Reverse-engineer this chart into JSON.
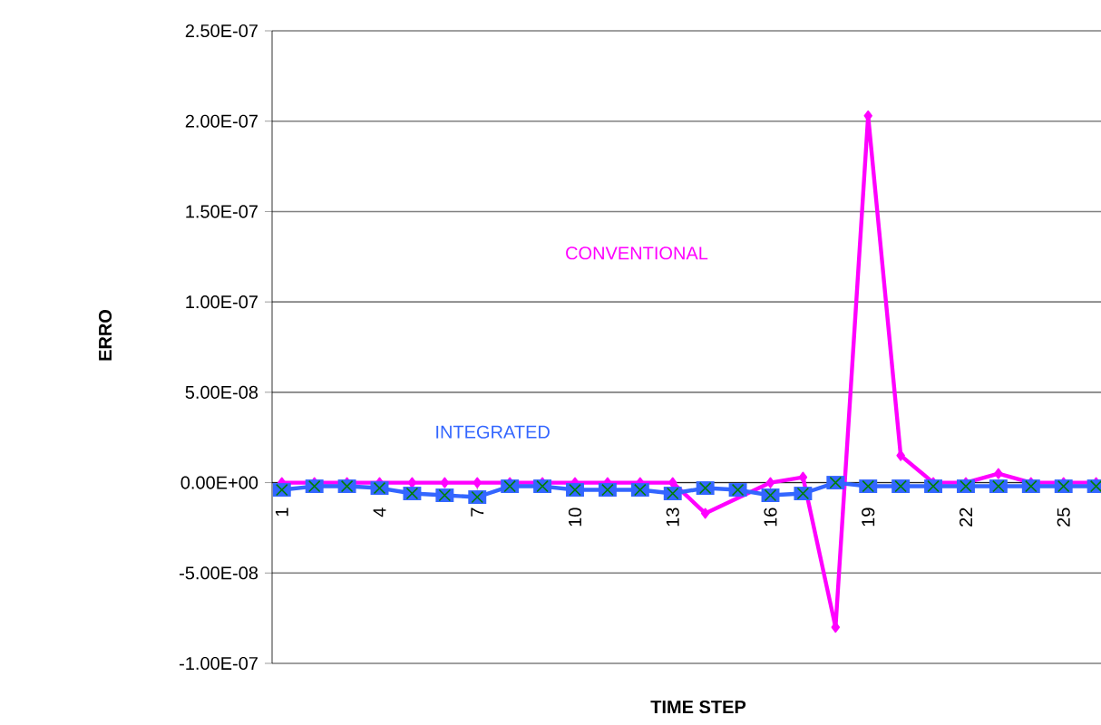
{
  "chart_data": {
    "type": "line",
    "xlabel": "TIME STEP",
    "ylabel": "ERRO",
    "categories": [
      "1",
      null,
      null,
      "4",
      null,
      null,
      "7",
      null,
      null,
      "10",
      null,
      null,
      "13",
      null,
      null,
      "16",
      null,
      null,
      "19",
      null,
      null,
      "22",
      null,
      null,
      "25",
      null
    ],
    "series": [
      {
        "name": "CONVENTIONAL",
        "color": "#ff00ff",
        "marker": "diamond",
        "values": [
          0,
          0,
          0,
          0,
          0,
          0,
          0,
          0,
          0,
          0,
          0,
          0,
          0,
          -1.7e-08,
          null,
          0,
          3e-09,
          -8e-08,
          2.03e-07,
          1.5e-08,
          0,
          0,
          5e-09,
          0,
          0,
          0
        ]
      },
      {
        "name": "INTEGRATED",
        "color": "#3366ff",
        "marker": "square",
        "values": [
          -4e-09,
          -2e-09,
          -2e-09,
          -3e-09,
          -6e-09,
          -7e-09,
          -8e-09,
          -2e-09,
          -2e-09,
          -4e-09,
          -4e-09,
          -4e-09,
          -6e-09,
          -3e-09,
          -4e-09,
          -7e-09,
          -6e-09,
          0,
          -2e-09,
          -2e-09,
          -2e-09,
          -2e-09,
          -2e-09,
          -2e-09,
          -2e-09,
          -2e-09
        ]
      }
    ],
    "ylim": [
      -1e-07,
      2.5e-07
    ],
    "yticks": [
      {
        "value": -1e-07,
        "label": "-1.00E-07"
      },
      {
        "value": -5e-08,
        "label": "-5.00E-08"
      },
      {
        "value": 0,
        "label": "0.00E+00"
      },
      {
        "value": 5e-08,
        "label": "5.00E-08"
      },
      {
        "value": 1e-07,
        "label": "1.00E-07"
      },
      {
        "value": 1.5e-07,
        "label": "1.50E-07"
      },
      {
        "value": 2e-07,
        "label": "2.00E-07"
      },
      {
        "value": 2.5e-07,
        "label": "2.50E-07"
      }
    ],
    "grid": "y",
    "legend": false
  }
}
